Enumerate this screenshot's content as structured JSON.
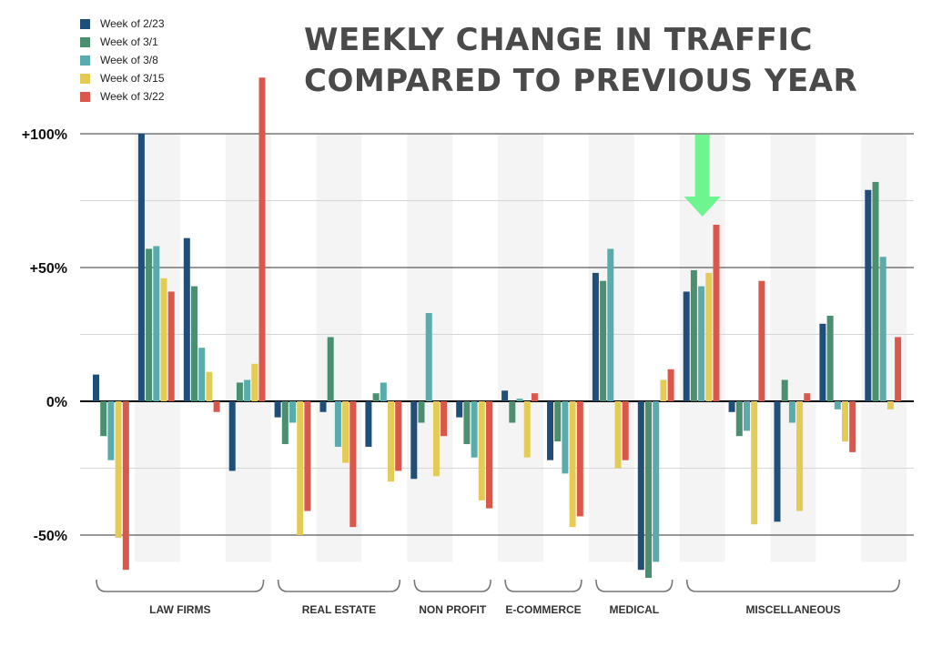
{
  "chart_data": {
    "type": "bar",
    "title": [
      "WEEKLY CHANGE IN TRAFFIC",
      "COMPARED TO PREVIOUS YEAR"
    ],
    "ylim": [
      -60,
      100
    ],
    "y_ticks": [
      {
        "value": 100,
        "label": "+100%"
      },
      {
        "value": 50,
        "label": "+50%"
      },
      {
        "value": 0,
        "label": "0%"
      },
      {
        "value": -50,
        "label": "-50%"
      }
    ],
    "grid": true,
    "legend_position": "top-left",
    "series": [
      {
        "name": "Week of 2/23",
        "color": "#1f4e79"
      },
      {
        "name": "Week of 3/1",
        "color": "#4a9070"
      },
      {
        "name": "Week of 3/8",
        "color": "#5aacac"
      },
      {
        "name": "Week of 3/15",
        "color": "#e3cb55"
      },
      {
        "name": "Week of 3/22",
        "color": "#d9574b"
      }
    ],
    "groups": [
      {
        "label": "LAW FIRMS",
        "subgroups": 4
      },
      {
        "label": "REAL ESTATE",
        "subgroups": 3
      },
      {
        "label": "NON PROFIT",
        "subgroups": 2
      },
      {
        "label": "E-COMMERCE",
        "subgroups": 2
      },
      {
        "label": "MEDICAL",
        "subgroups": 2
      },
      {
        "label": "MISCELLANEOUS",
        "subgroups": 5
      }
    ],
    "values": [
      [
        10,
        -13,
        -22,
        -51,
        -63
      ],
      [
        100,
        57,
        58,
        46,
        41
      ],
      [
        61,
        43,
        20,
        11,
        -4
      ],
      [
        -26,
        7,
        8,
        14,
        121
      ],
      [
        -6,
        -16,
        -8,
        -50,
        -41
      ],
      [
        -4,
        24,
        -17,
        -23,
        -47
      ],
      [
        -17,
        3,
        7,
        -30,
        -26
      ],
      [
        -29,
        -8,
        33,
        -28,
        -13
      ],
      [
        -6,
        -16,
        -21,
        -37,
        -40
      ],
      [
        4,
        -8,
        1,
        -21,
        3
      ],
      [
        -22,
        -15,
        -27,
        -47,
        -43
      ],
      [
        48,
        45,
        57,
        -25,
        -22
      ],
      [
        -63,
        -66,
        -60,
        8,
        12
      ],
      [
        41,
        49,
        43,
        48,
        66
      ],
      [
        -4,
        -13,
        -11,
        -46,
        45
      ],
      [
        -45,
        8,
        -8,
        -41,
        3
      ],
      [
        29,
        32,
        -3,
        -15,
        -19
      ],
      [
        79,
        82,
        54,
        -3,
        24
      ]
    ],
    "highlight_arrow": {
      "target_subgroup": 13,
      "color": "#6ff58f"
    }
  }
}
